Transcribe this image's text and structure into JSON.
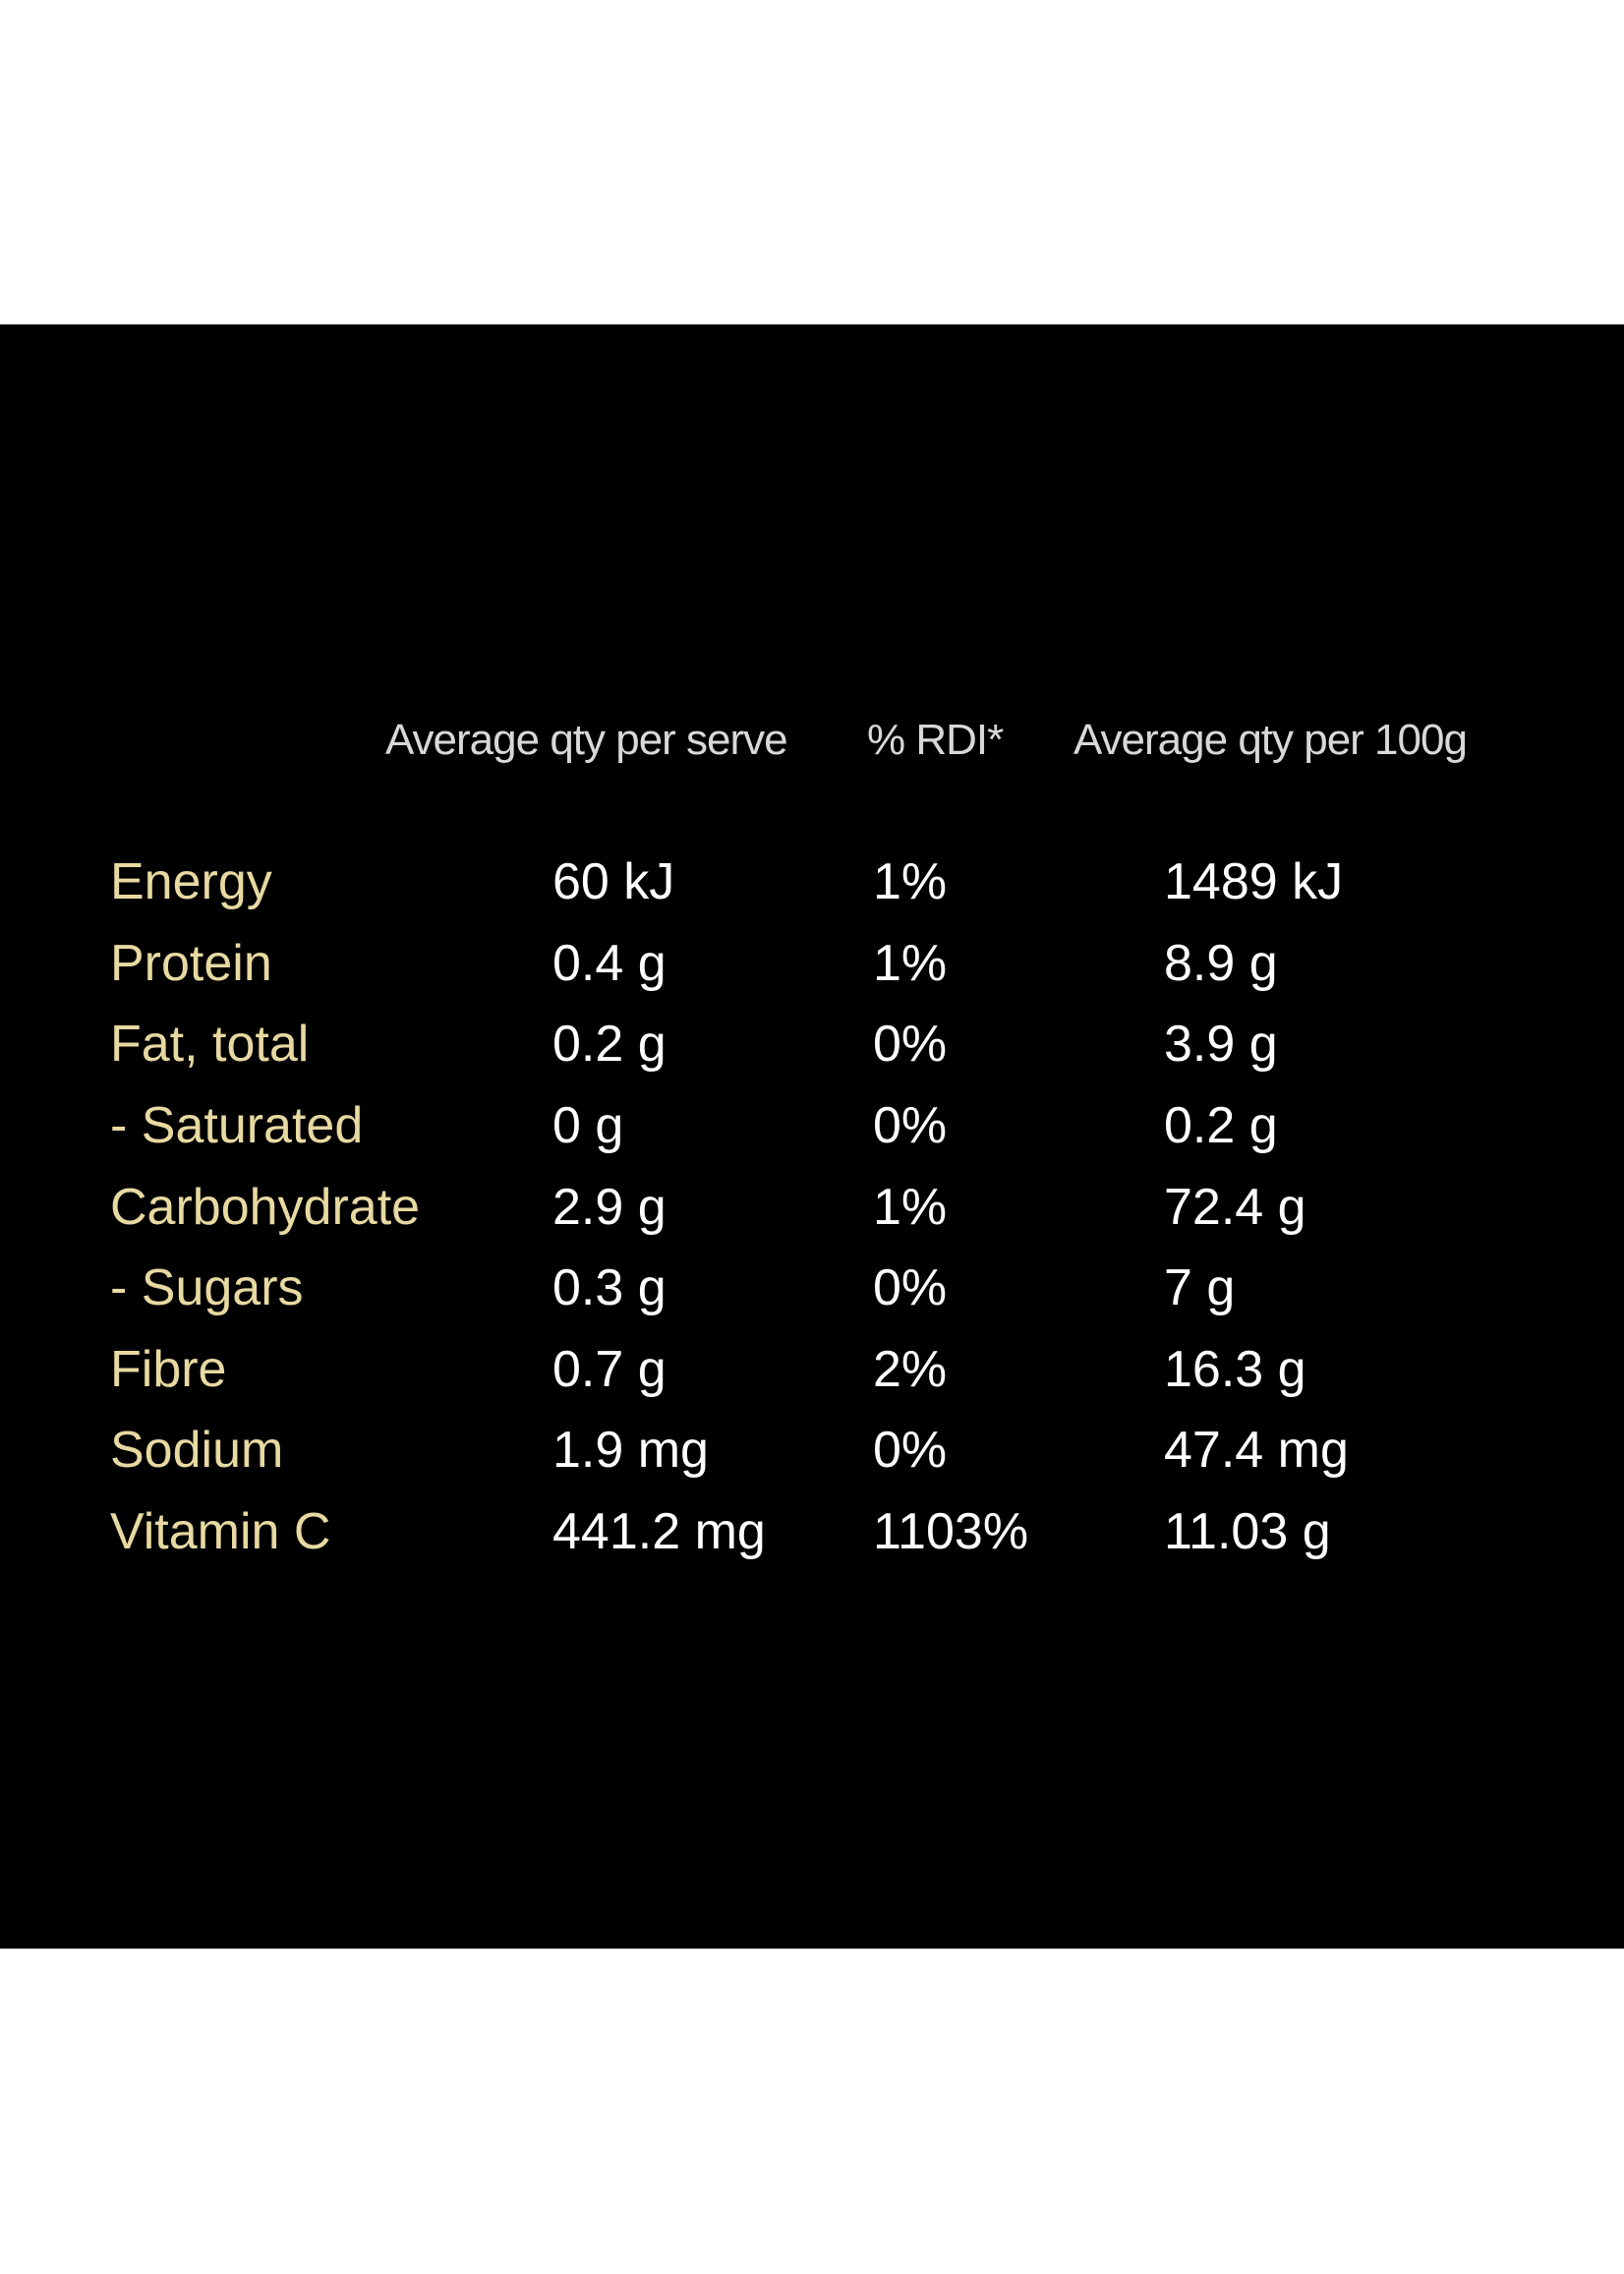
{
  "header": {
    "col_serve": "Average qty per serve",
    "col_rdi": "% RDI*",
    "col_per100": "Average qty per 100g"
  },
  "rows": [
    {
      "name": "Energy",
      "serve": "60 kJ",
      "rdi": "1%",
      "per100": "1489 kJ"
    },
    {
      "name": "Protein",
      "serve": "0.4 g",
      "rdi": "1%",
      "per100": "8.9 g"
    },
    {
      "name": "Fat, total",
      "serve": "0.2 g",
      "rdi": "0%",
      "per100": "3.9 g"
    },
    {
      "name": "- Saturated",
      "serve": "0 g",
      "rdi": "0%",
      "per100": "0.2 g"
    },
    {
      "name": "Carbohydrate",
      "serve": "2.9 g",
      "rdi": "1%",
      "per100": "72.4 g"
    },
    {
      "name": "- Sugars",
      "serve": "0.3 g",
      "rdi": "0%",
      "per100": "7 g"
    },
    {
      "name": "Fibre",
      "serve": "0.7 g",
      "rdi": "2%",
      "per100": "16.3 g"
    },
    {
      "name": "Sodium",
      "serve": "1.9 mg",
      "rdi": "0%",
      "per100": "47.4 mg"
    },
    {
      "name": "Vitamin C",
      "serve": "441.2 mg",
      "rdi": "1103%",
      "per100": "11.03 g"
    }
  ],
  "colors": {
    "background": "#000000",
    "label": "#e7d9a1",
    "value": "#ffffff",
    "header": "#d8d8d8"
  }
}
